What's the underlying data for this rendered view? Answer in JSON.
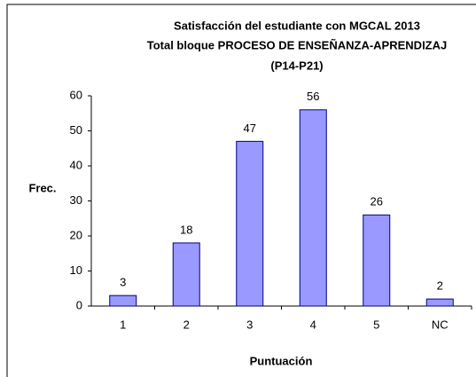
{
  "chart_data": {
    "type": "bar",
    "title": [
      "Satisfacción del estudiante con MGCAL 2013",
      "Total bloque PROCESO DE ENSEÑANZA-APRENDIZAJ",
      "(P14-P21)"
    ],
    "y_label": "Frec.",
    "x_label": "Puntuación",
    "categories": [
      "1",
      "2",
      "3",
      "4",
      "5",
      "NC"
    ],
    "values": [
      3,
      18,
      47,
      56,
      26,
      2
    ],
    "color": "#9999ff",
    "ylim": [
      0,
      60
    ],
    "yticks": [
      0,
      10,
      20,
      30,
      40,
      50,
      60
    ],
    "grid": false
  }
}
